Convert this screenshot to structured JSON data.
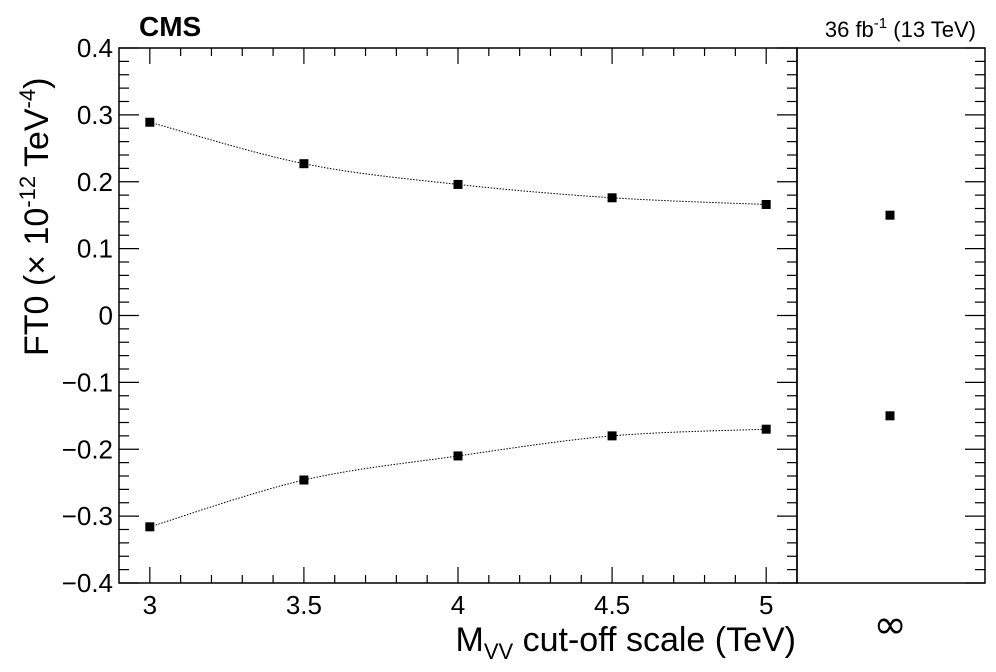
{
  "chart_data": {
    "type": "scatter",
    "experiment_label": "CMS",
    "lumi_label": {
      "prefix": "36 fb",
      "sup": "-1",
      "suffix": " (13 TeV)"
    },
    "xlabel": {
      "main": "M",
      "sub": "VV",
      "rest": " cut-off scale (TeV)"
    },
    "ylabel": {
      "pre": "FT0 (× 10",
      "sup1": "-12",
      "mid": " TeV",
      "sup2": "-4",
      "post": ")"
    },
    "xlim": [
      2.9,
      5.1
    ],
    "ylim": [
      -0.4,
      0.4
    ],
    "x_ticks": [
      "3",
      "3.5",
      "4",
      "4.5",
      "5"
    ],
    "y_ticks": [
      "0.4",
      "0.3",
      "0.2",
      "0.1",
      "0",
      "−0.1",
      "−0.2",
      "−0.3",
      "−0.4"
    ],
    "infinity_label": "∞",
    "series": [
      {
        "x": [
          3.0,
          3.5,
          4.0,
          4.5,
          5.0
        ],
        "values": [
          0.289,
          0.227,
          0.196,
          0.176,
          0.166
        ]
      },
      {
        "x": [
          3.0,
          3.5,
          4.0,
          4.5,
          5.0
        ],
        "values": [
          -0.316,
          -0.246,
          -0.21,
          -0.18,
          -0.17
        ]
      }
    ],
    "infinity_points": [
      0.15,
      -0.15
    ],
    "grid": false
  }
}
